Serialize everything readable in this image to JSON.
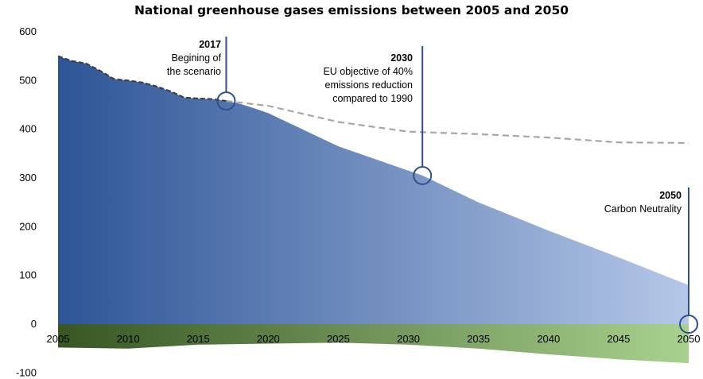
{
  "chart_data": {
    "type": "area",
    "title": "National greenhouse gases emissions between 2005 and 2050",
    "xlabel": "",
    "ylabel": "",
    "xlim": [
      2005,
      2050
    ],
    "ylim": [
      -100,
      600
    ],
    "x_ticks": [
      "2005",
      "2010",
      "2015",
      "2020",
      "2025",
      "2030",
      "2035",
      "2040",
      "2045",
      "2050"
    ],
    "y_ticks": [
      "600",
      "500",
      "400",
      "300",
      "200",
      "100",
      "0",
      "-100"
    ],
    "grid": false,
    "legend": "none",
    "series": [
      {
        "style": "blue gradient area",
        "color_start": "#2e5597",
        "color_end": "#b4c7e7",
        "x": [
          2005,
          2006,
          2007,
          2008,
          2009,
          2010,
          2011,
          2012,
          2013,
          2014,
          2015,
          2016,
          2017,
          2018,
          2019,
          2020,
          2025,
          2030,
          2031,
          2035,
          2040,
          2045,
          2050
        ],
        "y": [
          550,
          540,
          535,
          520,
          503,
          500,
          496,
          488,
          478,
          465,
          463,
          462,
          458,
          452,
          443,
          433,
          365,
          315,
          305,
          250,
          192,
          137,
          80
        ]
      },
      {
        "style": "dark dashed line",
        "color": "#404040",
        "x": [
          2005,
          2006,
          2007,
          2008,
          2009,
          2010,
          2011,
          2012,
          2013,
          2014,
          2015,
          2016,
          2017
        ],
        "y": [
          550,
          540,
          535,
          520,
          503,
          500,
          496,
          488,
          478,
          465,
          463,
          462,
          458
        ]
      },
      {
        "style": "grey dashed line",
        "color": "#a6a6a6",
        "x": [
          2017,
          2020,
          2025,
          2030,
          2035,
          2040,
          2045,
          2050
        ],
        "y": [
          458,
          448,
          415,
          395,
          390,
          383,
          373,
          372
        ]
      },
      {
        "style": "green gradient area (negative)",
        "color_start": "#375623",
        "color_end": "#a9d18e",
        "x": [
          2005,
          2010,
          2015,
          2020,
          2025,
          2030,
          2035,
          2040,
          2045,
          2050
        ],
        "y": [
          -48,
          -50,
          -42,
          -40,
          -38,
          -42,
          -50,
          -62,
          -72,
          -80
        ]
      }
    ],
    "annotations": [
      {
        "year_label": "2017",
        "text": [
          "Begining of",
          "the scenario"
        ],
        "x": 2017,
        "y": 458
      },
      {
        "year_label": "2030",
        "text": [
          "EU objective of 40%",
          "emissions  reduction",
          "compared to 1990"
        ],
        "x": 2031,
        "y": 305
      },
      {
        "year_label": "2050",
        "text": [
          "Carbon Neutrality"
        ],
        "x": 2050,
        "y": 0
      }
    ]
  }
}
